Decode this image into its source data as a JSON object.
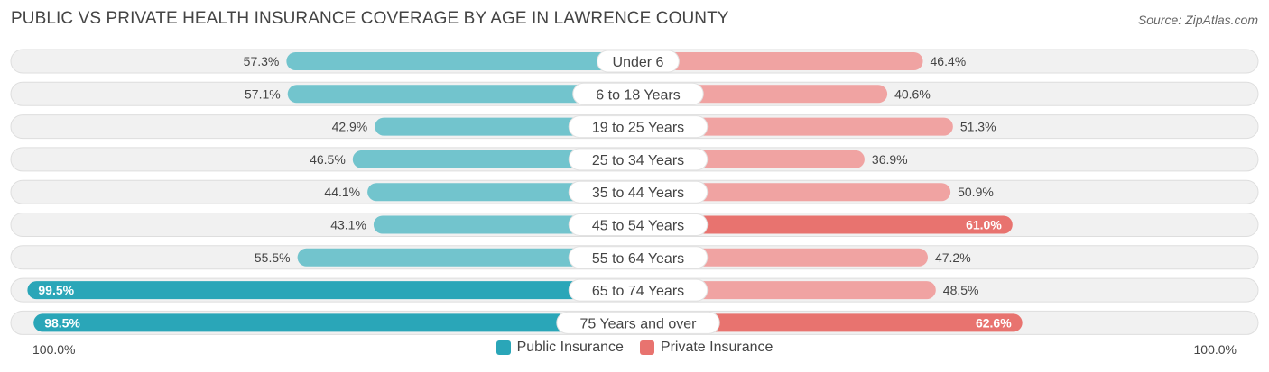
{
  "title": "PUBLIC VS PRIVATE HEALTH INSURANCE COVERAGE BY AGE IN LAWRENCE COUNTY",
  "source": "Source: ZipAtlas.com",
  "colors": {
    "public_dark": "#2aa6b8",
    "public_light": "#72c4cd",
    "private_dark": "#e8736f",
    "private_light": "#f0a3a2",
    "track": "#f1f1f1",
    "track_border": "#dedede"
  },
  "chart_data": {
    "type": "bar",
    "orientation": "diverging-horizontal",
    "categories": [
      "Under 6",
      "6 to 18 Years",
      "19 to 25 Years",
      "25 to 34 Years",
      "35 to 44 Years",
      "45 to 54 Years",
      "55 to 64 Years",
      "65 to 74 Years",
      "75 Years and over"
    ],
    "series": [
      {
        "name": "Public Insurance",
        "side": "left",
        "values": [
          57.3,
          57.1,
          42.9,
          46.5,
          44.1,
          43.1,
          55.5,
          99.5,
          98.5
        ],
        "labels": [
          "57.3%",
          "57.1%",
          "42.9%",
          "46.5%",
          "44.1%",
          "43.1%",
          "55.5%",
          "99.5%",
          "98.5%"
        ]
      },
      {
        "name": "Private Insurance",
        "side": "right",
        "values": [
          46.4,
          40.6,
          51.3,
          36.9,
          50.9,
          61.0,
          47.2,
          48.5,
          62.6
        ],
        "labels": [
          "46.4%",
          "40.6%",
          "51.3%",
          "36.9%",
          "50.9%",
          "61.0%",
          "47.2%",
          "48.5%",
          "62.6%"
        ]
      }
    ],
    "xlim": [
      -100,
      100
    ],
    "axis_left_label": "100.0%",
    "axis_right_label": "100.0%",
    "legend_position": "bottom-center"
  }
}
